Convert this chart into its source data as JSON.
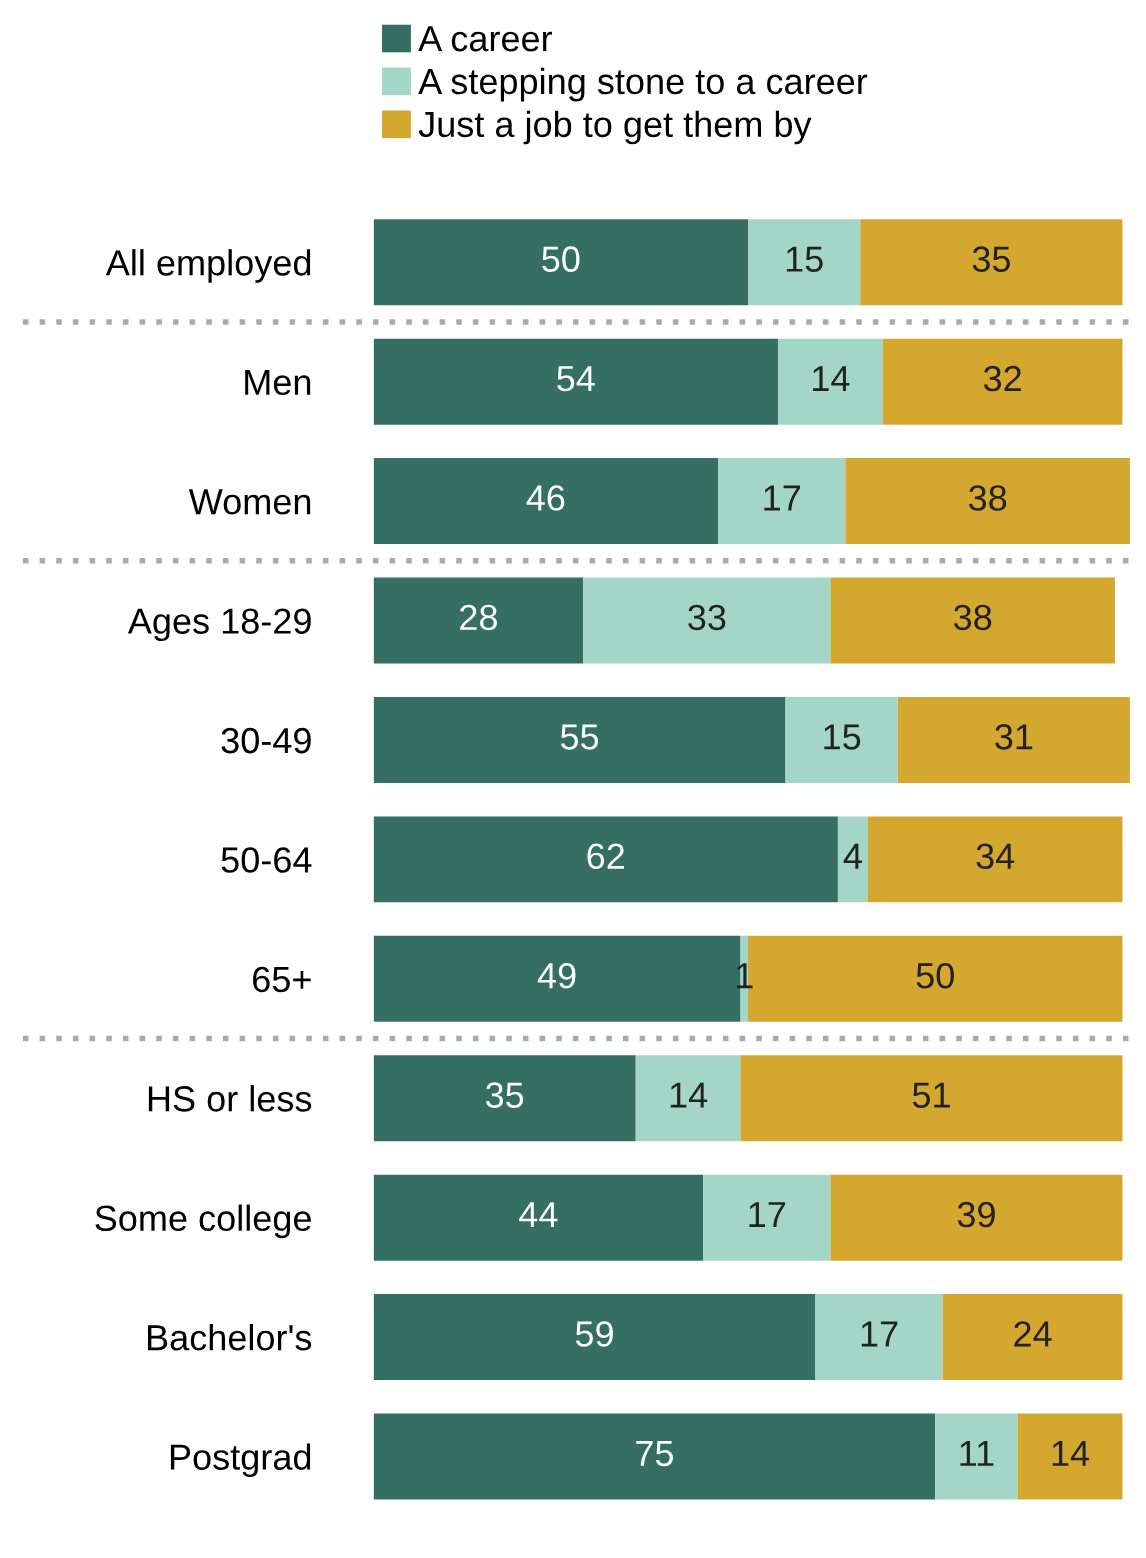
{
  "chart_data": {
    "type": "bar",
    "orientation": "horizontal",
    "stacked": true,
    "data_labels": true,
    "legend": "top",
    "grid": false,
    "tick_labels": "y",
    "xlim": [
      0,
      101
    ],
    "categories": [
      "All employed",
      "Men",
      "Women",
      "Ages 18-29",
      "30-49",
      "50-64",
      "65+",
      "HS or less",
      "Some college",
      "Bachelor's",
      "Postgrad"
    ],
    "series": [
      {
        "name": "A career",
        "color": "#356f61",
        "values": [
          50,
          54,
          46,
          28,
          55,
          62,
          49,
          35,
          44,
          59,
          75
        ]
      },
      {
        "name": "A stepping stone to a career",
        "color": "#a4d6c8",
        "values": [
          15,
          14,
          17,
          33,
          15,
          4,
          1,
          14,
          17,
          17,
          11
        ]
      },
      {
        "name": "Just a job to get them by",
        "color": "#d4a72f",
        "values": [
          35,
          32,
          38,
          38,
          31,
          34,
          50,
          51,
          39,
          24,
          14
        ]
      }
    ]
  }
}
